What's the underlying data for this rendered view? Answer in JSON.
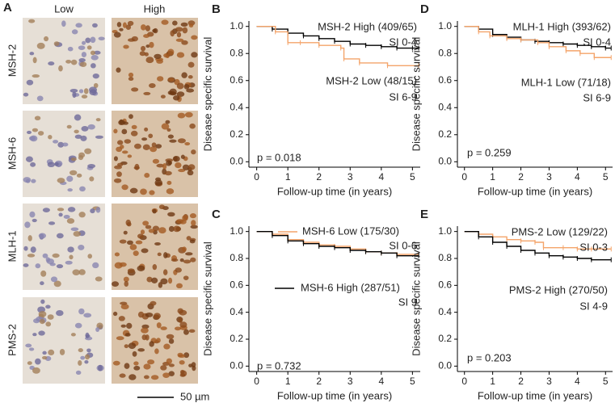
{
  "panel_a": {
    "label": "A",
    "columns": [
      "Low",
      "High"
    ],
    "rows": [
      "MSH-2",
      "MSH-6",
      "MLH-1",
      "PMS-2"
    ],
    "scale_bar": "50 µm"
  },
  "chart_data": [
    {
      "type": "line",
      "panel": "B",
      "xlabel": "Follow-up time (in years)",
      "ylabel": "Disease specific survival",
      "xlim": [
        -0.25,
        5.25
      ],
      "ylim": [
        -0.04,
        1.04
      ],
      "xticks": [
        0,
        1,
        2,
        3,
        4,
        5
      ],
      "yticks": [
        {
          "value": 0,
          "label": "0.0"
        },
        {
          "value": 0.2,
          "label": "0.2"
        },
        {
          "value": 0.4,
          "label": "0.4"
        },
        {
          "value": 0.6,
          "label": "0.6"
        },
        {
          "value": 0.8,
          "label": "0.8"
        },
        {
          "value": 1,
          "label": "1.0"
        }
      ],
      "series": [
        {
          "name": "MSH-2 High (409/65)",
          "color": "#000000",
          "x": [
            0,
            0.5,
            1,
            1.5,
            2,
            2.5,
            3,
            3.5,
            4,
            4.5,
            5,
            5.2
          ],
          "values": [
            1,
            0.98,
            0.95,
            0.93,
            0.91,
            0.89,
            0.87,
            0.86,
            0.85,
            0.84,
            0.84,
            0.84
          ]
        },
        {
          "name": "MSH-2 Low (48/15)",
          "color": "#f4a46a",
          "x": [
            0,
            0.6,
            1,
            1.4,
            2,
            2.7,
            2.8,
            3.3,
            4.2,
            5.2
          ],
          "values": [
            1,
            0.96,
            0.88,
            0.88,
            0.86,
            0.84,
            0.76,
            0.73,
            0.71,
            0.71
          ]
        }
      ],
      "annotations": [
        "SI 0-4",
        "SI 6-9",
        "p = 0.018"
      ]
    },
    {
      "type": "line",
      "panel": "D",
      "xlabel": "Follow-up time (in years)",
      "ylabel": "Disease specific survival",
      "xlim": [
        -0.25,
        5.25
      ],
      "ylim": [
        -0.04,
        1.04
      ],
      "xticks": [
        0,
        1,
        2,
        3,
        4,
        5
      ],
      "yticks": [
        {
          "value": 0,
          "label": "0.0"
        },
        {
          "value": 0.2,
          "label": "0.2"
        },
        {
          "value": 0.4,
          "label": "0.4"
        },
        {
          "value": 0.6,
          "label": "0.6"
        },
        {
          "value": 0.8,
          "label": "0.8"
        },
        {
          "value": 1,
          "label": "1.0"
        }
      ],
      "series": [
        {
          "name": "MLH-1 High (393/62)",
          "color": "#000000",
          "x": [
            0,
            0.5,
            1,
            1.5,
            2,
            2.5,
            3,
            3.5,
            4,
            4.5,
            5,
            5.2
          ],
          "values": [
            1,
            0.98,
            0.94,
            0.92,
            0.9,
            0.89,
            0.88,
            0.87,
            0.86,
            0.85,
            0.84,
            0.84
          ]
        },
        {
          "name": "MLH-1 Low (71/18)",
          "color": "#f4a46a",
          "x": [
            0,
            0.5,
            0.9,
            1.5,
            2,
            2.6,
            3,
            3.6,
            4.1,
            4.6,
            5.2
          ],
          "values": [
            1,
            0.96,
            0.93,
            0.91,
            0.9,
            0.88,
            0.85,
            0.82,
            0.8,
            0.77,
            0.77
          ]
        }
      ],
      "annotations": [
        "SI 0-4",
        "SI 6-9",
        "p = 0.259"
      ]
    },
    {
      "type": "line",
      "panel": "C",
      "xlabel": "Follow-up time (in years)",
      "ylabel": "Disease specific survival",
      "xlim": [
        -0.25,
        5.25
      ],
      "ylim": [
        -0.04,
        1.04
      ],
      "xticks": [
        0,
        1,
        2,
        3,
        4,
        5
      ],
      "yticks": [
        {
          "value": 0,
          "label": "0.0"
        },
        {
          "value": 0.2,
          "label": "0.2"
        },
        {
          "value": 0.4,
          "label": "0.4"
        },
        {
          "value": 0.6,
          "label": "0.6"
        },
        {
          "value": 0.8,
          "label": "0.8"
        },
        {
          "value": 1,
          "label": "1.0"
        }
      ],
      "series": [
        {
          "name": "MSH-6 Low (175/30)",
          "color": "#f4a46a",
          "x": [
            0,
            0.5,
            1,
            1.5,
            2,
            2.5,
            3,
            3.5,
            4,
            4.5,
            5.2
          ],
          "values": [
            1,
            0.98,
            0.94,
            0.92,
            0.9,
            0.89,
            0.87,
            0.85,
            0.84,
            0.83,
            0.83
          ]
        },
        {
          "name": "MSH-6 High (287/51)",
          "color": "#000000",
          "x": [
            0,
            0.5,
            1,
            1.5,
            2,
            2.5,
            3,
            3.5,
            4,
            4.5,
            5.2
          ],
          "values": [
            1,
            0.97,
            0.93,
            0.91,
            0.89,
            0.88,
            0.86,
            0.85,
            0.84,
            0.82,
            0.82
          ]
        }
      ],
      "annotations": [
        "SI 0-6",
        "SI 9",
        "p = 0.732"
      ]
    },
    {
      "type": "line",
      "panel": "E",
      "xlabel": "Follow-up time (in years)",
      "ylabel": "Disease specific survival",
      "xlim": [
        -0.25,
        5.25
      ],
      "ylim": [
        -0.04,
        1.04
      ],
      "xticks": [
        0,
        1,
        2,
        3,
        4,
        5
      ],
      "yticks": [
        {
          "value": 0,
          "label": "0.0"
        },
        {
          "value": 0.2,
          "label": "0.2"
        },
        {
          "value": 0.4,
          "label": "0.4"
        },
        {
          "value": 0.6,
          "label": "0.6"
        },
        {
          "value": 0.8,
          "label": "0.8"
        },
        {
          "value": 1,
          "label": "1.0"
        }
      ],
      "series": [
        {
          "name": "PMS-2 Low (129/22)",
          "color": "#f4a46a",
          "x": [
            0,
            0.5,
            1,
            1.5,
            2,
            2.5,
            2.8,
            3.5,
            4,
            4.5,
            5.2
          ],
          "values": [
            1,
            0.98,
            0.96,
            0.94,
            0.93,
            0.92,
            0.88,
            0.88,
            0.87,
            0.87,
            0.87
          ]
        },
        {
          "name": "PMS-2 High (270/50)",
          "color": "#000000",
          "x": [
            0,
            0.5,
            1,
            1.5,
            2,
            2.5,
            3,
            3.5,
            4,
            4.5,
            5.2
          ],
          "values": [
            1,
            0.96,
            0.92,
            0.89,
            0.86,
            0.84,
            0.82,
            0.81,
            0.8,
            0.79,
            0.79
          ]
        }
      ],
      "annotations": [
        "SI 0-3",
        "SI 4-9",
        "p = 0.203"
      ]
    }
  ]
}
